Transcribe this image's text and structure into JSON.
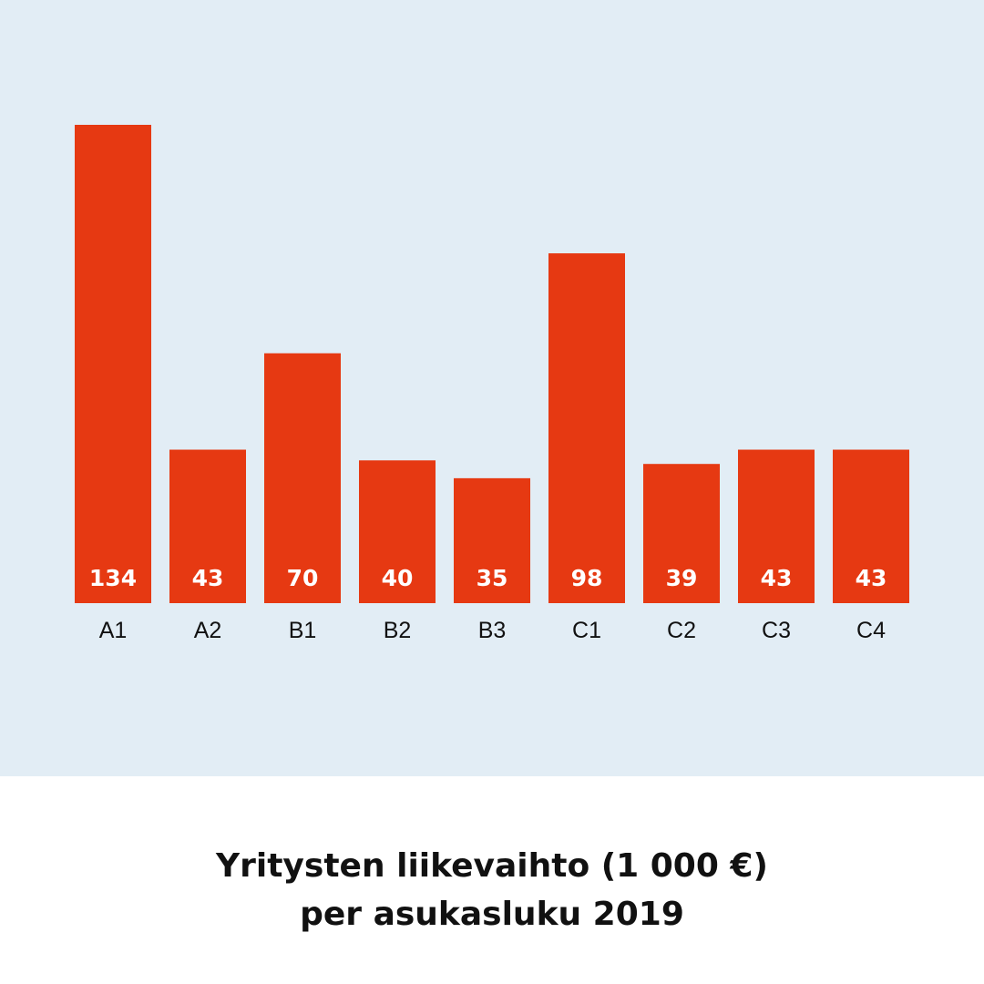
{
  "colors": {
    "panel_background": "#e2edf5",
    "bar": "#e63912",
    "bar_label": "#ffffff",
    "category_label": "#111111"
  },
  "caption": {
    "line1": "Yritysten liikevaihto (1 000 €)",
    "line2": "per asukasluku 2019"
  },
  "chart_data": {
    "type": "bar",
    "categories": [
      "A1",
      "A2",
      "B1",
      "B2",
      "B3",
      "C1",
      "C2",
      "C3",
      "C4"
    ],
    "values": [
      134,
      43,
      70,
      40,
      35,
      98,
      39,
      43,
      43
    ],
    "ylim": [
      0,
      134
    ],
    "grid": false,
    "data_labels": "inside-bottom"
  }
}
